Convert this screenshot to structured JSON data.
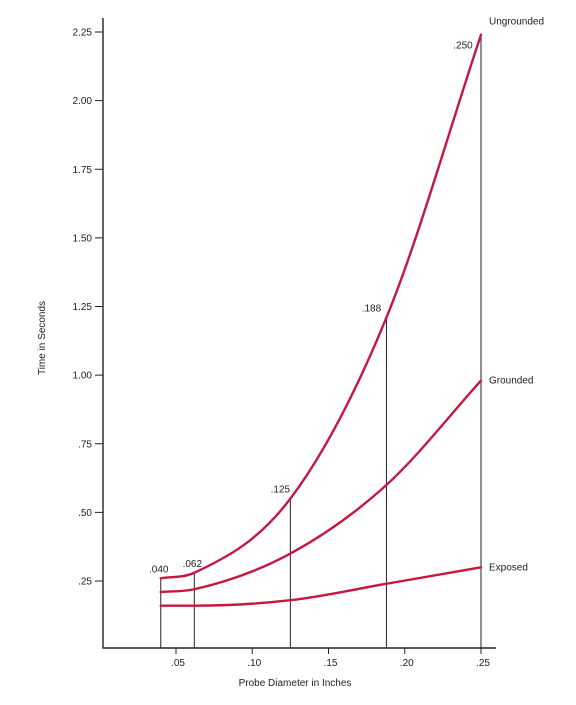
{
  "chart_data": {
    "type": "line",
    "xlabel": "Probe Diameter in Inches",
    "ylabel": "Time in Seconds",
    "xlim": [
      0,
      0.25
    ],
    "ylim": [
      0,
      2.3
    ],
    "x_ticks": [
      {
        "value": 0.05,
        "label": ".05"
      },
      {
        "value": 0.1,
        "label": ".10"
      },
      {
        "value": 0.15,
        "label": ".15"
      },
      {
        "value": 0.2,
        "label": ".20"
      },
      {
        "value": 0.25,
        "label": ".25"
      }
    ],
    "y_ticks": [
      {
        "value": 0.25,
        "label": ".25"
      },
      {
        "value": 0.5,
        "label": ".50"
      },
      {
        "value": 0.75,
        "label": ".75"
      },
      {
        "value": 1.0,
        "label": "1.00"
      },
      {
        "value": 1.25,
        "label": "1.25"
      },
      {
        "value": 1.5,
        "label": "1.50"
      },
      {
        "value": 1.75,
        "label": "1.75"
      },
      {
        "value": 2.0,
        "label": "2.00"
      },
      {
        "value": 2.25,
        "label": "2.25"
      }
    ],
    "grid": false,
    "line_color": "#c8173f",
    "x": [
      0.04,
      0.062,
      0.125,
      0.188,
      0.25
    ],
    "series": [
      {
        "name": "Ungrounded",
        "values": [
          0.26,
          0.28,
          0.55,
          1.21,
          2.24
        ]
      },
      {
        "name": "Grounded",
        "values": [
          0.21,
          0.22,
          0.35,
          0.6,
          0.98
        ]
      },
      {
        "name": "Exposed",
        "values": [
          0.16,
          0.16,
          0.18,
          0.24,
          0.3
        ]
      }
    ],
    "annotations": [
      {
        "label": ".040",
        "x": 0.04
      },
      {
        "label": ".062",
        "x": 0.062
      },
      {
        "label": ".125",
        "x": 0.125
      },
      {
        "label": ".188",
        "x": 0.188
      },
      {
        "label": ".250",
        "x": 0.25
      }
    ]
  }
}
